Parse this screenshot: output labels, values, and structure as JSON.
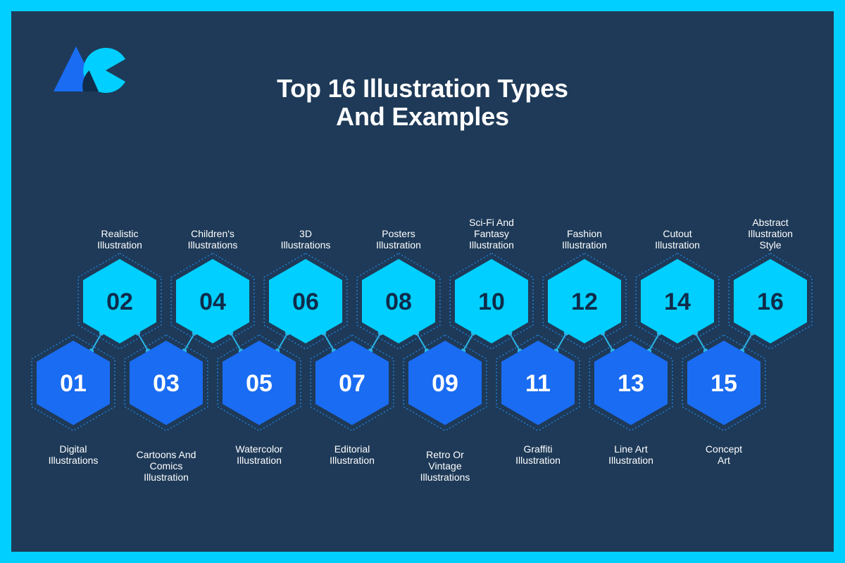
{
  "title": {
    "line1": "Top 16 Illustration Types",
    "line2": "And Examples"
  },
  "colors": {
    "frame": "#00cfff",
    "background": "#1e3a58",
    "light_hex": "#00cfff",
    "dark_hex": "#1a6cf2",
    "outline": "#1f7fd6",
    "connector": "#29b6e8"
  },
  "logo": {
    "icon": "triangle-circle-logo-icon"
  },
  "items": [
    {
      "number": "01",
      "label": [
        "Digital",
        "Illustrations"
      ]
    },
    {
      "number": "02",
      "label": [
        "Realistic",
        "Illustration"
      ]
    },
    {
      "number": "03",
      "label": [
        "Cartoons And",
        "Comics",
        "Illustration"
      ]
    },
    {
      "number": "04",
      "label": [
        "Children's",
        "Illustrations"
      ]
    },
    {
      "number": "05",
      "label": [
        "Watercolor",
        "Illustration"
      ]
    },
    {
      "number": "06",
      "label": [
        "3D",
        "Illustrations"
      ]
    },
    {
      "number": "07",
      "label": [
        "Editorial",
        "Illustration"
      ]
    },
    {
      "number": "08",
      "label": [
        "Posters",
        "Illustration"
      ]
    },
    {
      "number": "09",
      "label": [
        "Retro Or",
        "Vintage",
        "Illustrations"
      ]
    },
    {
      "number": "10",
      "label": [
        "Sci-Fi And",
        "Fantasy",
        "Illustration"
      ]
    },
    {
      "number": "11",
      "label": [
        "Graffiti",
        "Illustration"
      ]
    },
    {
      "number": "12",
      "label": [
        "Fashion",
        "Illustration"
      ]
    },
    {
      "number": "13",
      "label": [
        "Line Art",
        "Illustration"
      ]
    },
    {
      "number": "14",
      "label": [
        "Cutout",
        "Illustration"
      ]
    },
    {
      "number": "15",
      "label": [
        "Concept",
        "Art"
      ]
    },
    {
      "number": "16",
      "label": [
        "Abstract",
        "Illustration",
        "Style"
      ]
    }
  ]
}
